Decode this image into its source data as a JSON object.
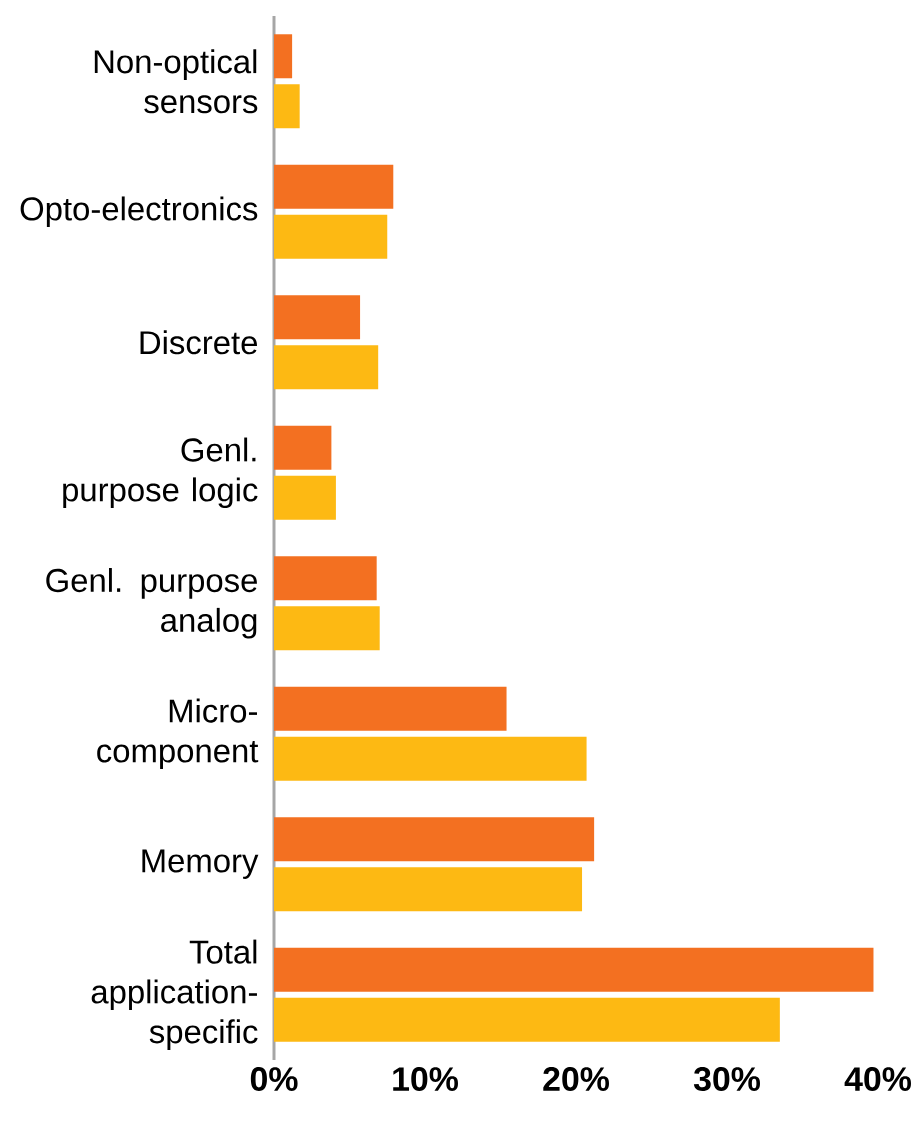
{
  "chart_data": {
    "type": "bar",
    "orientation": "horizontal",
    "categories": [
      "Non-optical sensors",
      "Opto-electronics",
      "Discrete",
      "Genl. purpose logic",
      "Genl. purpose analog",
      "Micro-component",
      "Memory",
      "Total application-specific"
    ],
    "series": [
      {
        "color": "#f37021",
        "values": [
          1.2,
          7.9,
          5.7,
          3.8,
          6.8,
          15.4,
          21.2,
          39.7
        ]
      },
      {
        "color": "#fdb913",
        "values": [
          1.7,
          7.5,
          6.9,
          4.1,
          7.0,
          20.7,
          20.4,
          33.5
        ]
      }
    ],
    "xlim": [
      0,
      40
    ],
    "xticks": [
      {
        "value": 0,
        "label": "0%"
      },
      {
        "value": 10,
        "label": "10%"
      },
      {
        "value": 20,
        "label": "20%"
      },
      {
        "value": 30,
        "label": "30%"
      },
      {
        "value": 40,
        "label": "40%"
      }
    ],
    "grid": false
  }
}
